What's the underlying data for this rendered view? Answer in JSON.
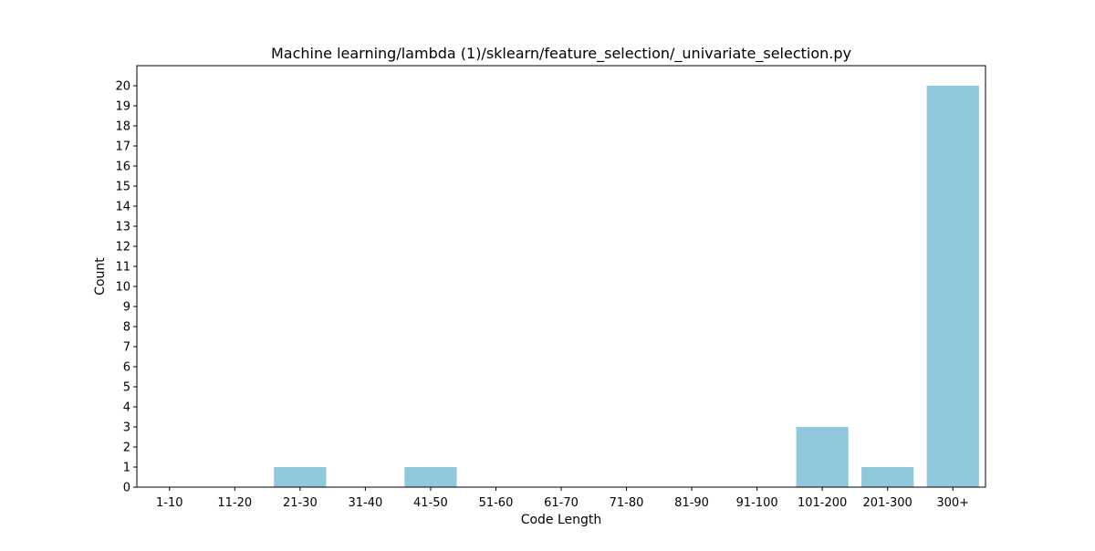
{
  "chart_data": {
    "type": "bar",
    "title": "Machine learning/lambda (1)/sklearn/feature_selection/_univariate_selection.py",
    "xlabel": "Code Length",
    "ylabel": "Count",
    "categories": [
      "1-10",
      "11-20",
      "21-30",
      "31-40",
      "41-50",
      "51-60",
      "61-70",
      "71-80",
      "81-90",
      "91-100",
      "101-200",
      "201-300",
      "300+"
    ],
    "values": [
      0,
      0,
      1,
      0,
      1,
      0,
      0,
      0,
      0,
      0,
      3,
      1,
      20
    ],
    "ylim": [
      0,
      21
    ],
    "yticks": [
      0,
      1,
      2,
      3,
      4,
      5,
      6,
      7,
      8,
      9,
      10,
      11,
      12,
      13,
      14,
      15,
      16,
      17,
      18,
      19,
      20
    ],
    "grid": false,
    "bar_color": "#92c8dd"
  }
}
